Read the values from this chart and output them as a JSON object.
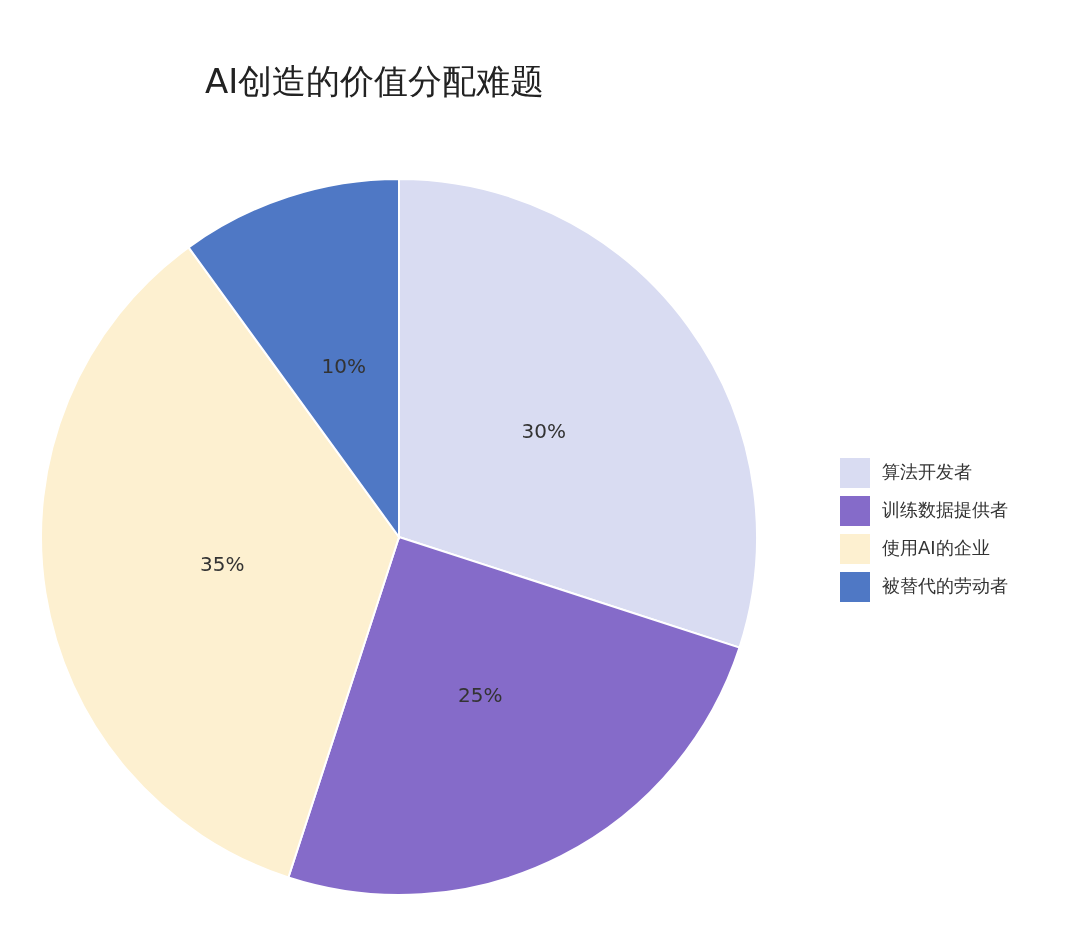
{
  "chart_data": {
    "type": "pie",
    "title": "AI创造的价值分配难题",
    "categories": [
      "算法开发者",
      "训练数据提供者",
      "使用AI的企业",
      "被替代的劳动者"
    ],
    "values": [
      30,
      25,
      35,
      10
    ],
    "colors": [
      "#d9dcf2",
      "#856bc9",
      "#fdf0d0",
      "#4f78c5"
    ],
    "value_labels": [
      "30%",
      "25%",
      "35%",
      "10%"
    ],
    "legend": "right"
  }
}
